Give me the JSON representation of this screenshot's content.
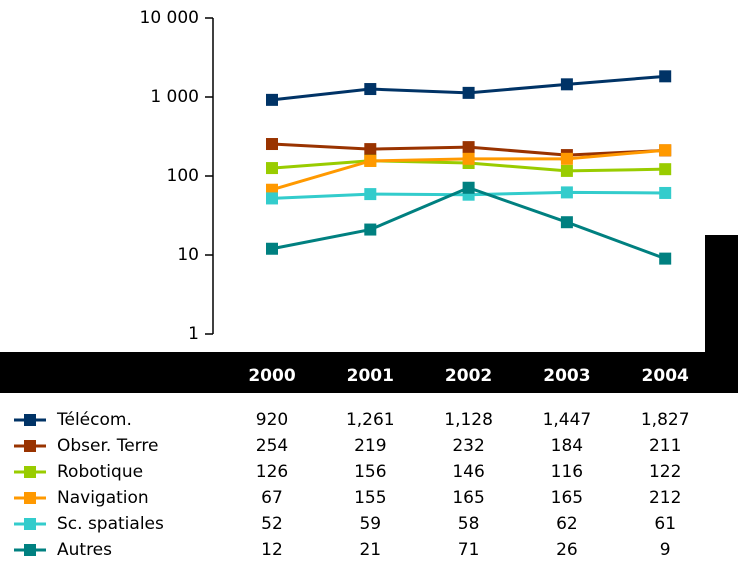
{
  "chart_data": {
    "type": "line",
    "log_scale": true,
    "categories": [
      "2000",
      "2001",
      "2002",
      "2003",
      "2004"
    ],
    "ylim": [
      1,
      10000
    ],
    "yticks": [
      1,
      10,
      100,
      {
        "value": 1000,
        "label": "1 000"
      },
      {
        "value": 10000,
        "label": "10 000"
      }
    ],
    "series": [
      {
        "name": "Télécom.",
        "color": "#003366",
        "values": [
          920,
          1261,
          1128,
          1447,
          1827
        ],
        "value_labels": [
          "920",
          "1,261",
          "1,128",
          "1,447",
          "1,827"
        ]
      },
      {
        "name": "Obser. Terre",
        "color": "#993300",
        "values": [
          254,
          219,
          232,
          184,
          211
        ],
        "value_labels": [
          "254",
          "219",
          "232",
          "184",
          "211"
        ]
      },
      {
        "name": "Robotique",
        "color": "#99cc00",
        "values": [
          126,
          156,
          146,
          116,
          122
        ],
        "value_labels": [
          "126",
          "156",
          "146",
          "116",
          "122"
        ]
      },
      {
        "name": "Navigation",
        "color": "#ff9900",
        "values": [
          67,
          155,
          165,
          165,
          212
        ],
        "value_labels": [
          "67",
          "155",
          "165",
          "165",
          "212"
        ]
      },
      {
        "name": "Sc. spatiales",
        "color": "#33cccc",
        "values": [
          52,
          59,
          58,
          62,
          61
        ],
        "value_labels": [
          "52",
          "59",
          "58",
          "62",
          "61"
        ]
      },
      {
        "name": "Autres",
        "color": "#008080",
        "values": [
          12,
          21,
          71,
          26,
          9
        ],
        "value_labels": [
          "12",
          "21",
          "71",
          "26",
          "9"
        ]
      }
    ]
  }
}
